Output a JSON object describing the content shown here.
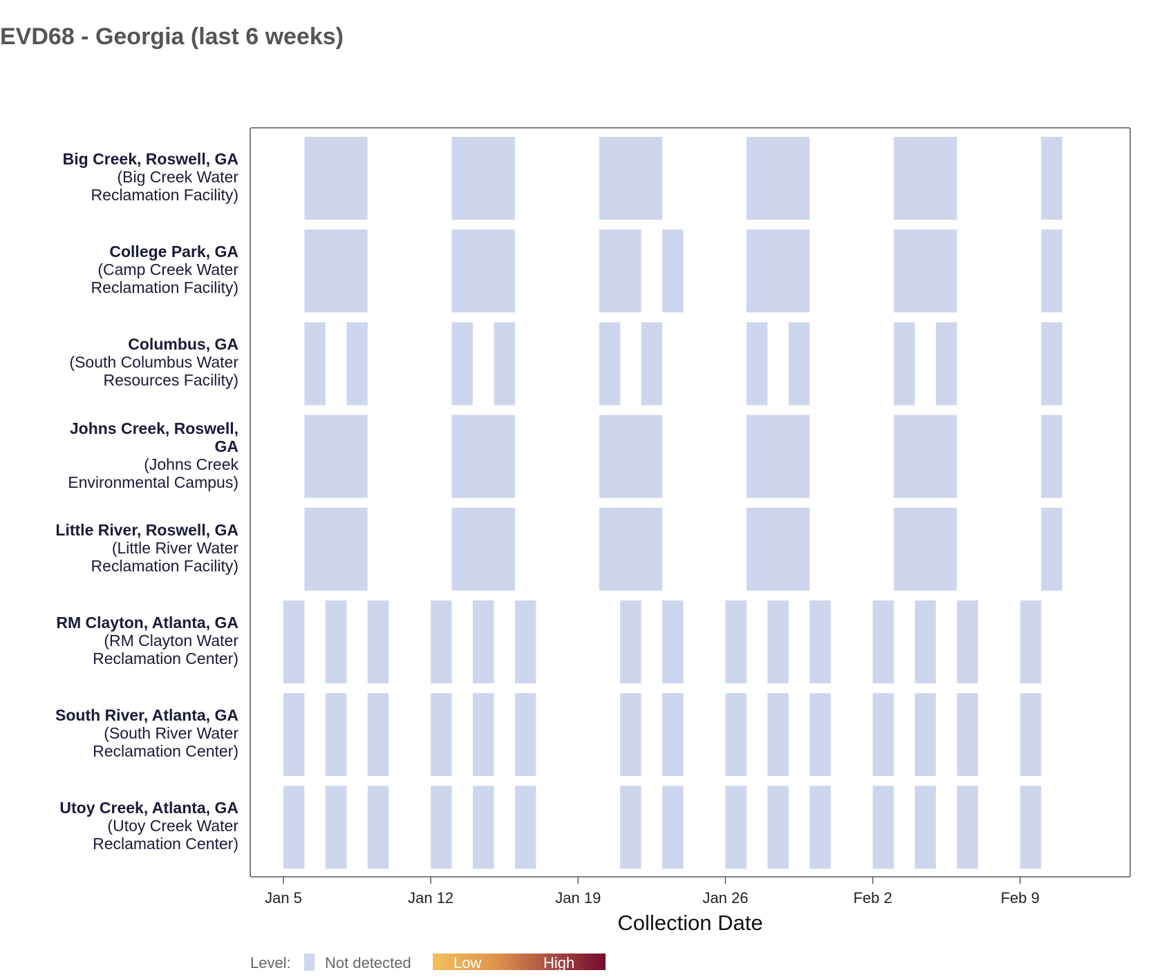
{
  "title": "EVD68 - Georgia (last 6 weeks)",
  "chart_data": {
    "type": "heatmap",
    "title": "EVD68 - Georgia (last 6 weeks)",
    "xlabel": "Collection Date",
    "ylabel": "",
    "x_ticks": [
      "Jan 5",
      "Jan 12",
      "Jan 19",
      "Jan 26",
      "Feb 2",
      "Feb 9"
    ],
    "xlim": [
      "Jan 4",
      "Feb 15"
    ],
    "grid": false,
    "legend": {
      "title": "Level:",
      "not_detected_label": "Not detected",
      "not_detected_color": "#cdd6ec",
      "gradient_low_label": "Low",
      "gradient_high_label": "High",
      "gradient_low_color": "#f2c05a",
      "gradient_high_color": "#740a2e",
      "placement": "bottom"
    },
    "sites": [
      {
        "location": "Big Creek, Roswell, GA",
        "facility": "(Big Creek Water Reclamation Facility)",
        "facility_lines": [
          "(Big Creek Water",
          "Reclamation Facility)"
        ],
        "samples": [
          {
            "start": "Jan 6",
            "end": "Jan 9"
          },
          {
            "start": "Jan 13",
            "end": "Jan 16"
          },
          {
            "start": "Jan 20",
            "end": "Jan 23"
          },
          {
            "start": "Jan 27",
            "end": "Jan 30"
          },
          {
            "start": "Feb 3",
            "end": "Feb 6"
          },
          {
            "start": "Feb 10",
            "end": "Feb 11"
          }
        ],
        "level": "Not detected"
      },
      {
        "location": "College Park, GA",
        "facility": "(Camp Creek Water Reclamation Facility)",
        "facility_lines": [
          "(Camp Creek Water",
          "Reclamation Facility)"
        ],
        "samples": [
          {
            "start": "Jan 6",
            "end": "Jan 9"
          },
          {
            "start": "Jan 13",
            "end": "Jan 16"
          },
          {
            "start": "Jan 20",
            "end": "Jan 22"
          },
          {
            "start": "Jan 23",
            "end": "Jan 24"
          },
          {
            "start": "Jan 27",
            "end": "Jan 30"
          },
          {
            "start": "Feb 3",
            "end": "Feb 6"
          },
          {
            "start": "Feb 10",
            "end": "Feb 11"
          }
        ],
        "level": "Not detected"
      },
      {
        "location": "Columbus, GA",
        "facility": "(South Columbus Water Resources Facility)",
        "facility_lines": [
          "(South Columbus Water",
          "Resources Facility)"
        ],
        "samples": [
          {
            "start": "Jan 6",
            "end": "Jan 7"
          },
          {
            "start": "Jan 8",
            "end": "Jan 9"
          },
          {
            "start": "Jan 13",
            "end": "Jan 14"
          },
          {
            "start": "Jan 15",
            "end": "Jan 16"
          },
          {
            "start": "Jan 20",
            "end": "Jan 21"
          },
          {
            "start": "Jan 22",
            "end": "Jan 23"
          },
          {
            "start": "Jan 27",
            "end": "Jan 28"
          },
          {
            "start": "Jan 29",
            "end": "Jan 30"
          },
          {
            "start": "Feb 3",
            "end": "Feb 4"
          },
          {
            "start": "Feb 5",
            "end": "Feb 6"
          },
          {
            "start": "Feb 10",
            "end": "Feb 11"
          }
        ],
        "level": "Not detected"
      },
      {
        "location": "Johns Creek, Roswell, GA",
        "location_lines": [
          "Johns Creek, Roswell,",
          "GA"
        ],
        "facility": "(Johns Creek Environmental Campus)",
        "facility_lines": [
          "(Johns Creek",
          "Environmental Campus)"
        ],
        "samples": [
          {
            "start": "Jan 6",
            "end": "Jan 9"
          },
          {
            "start": "Jan 13",
            "end": "Jan 16"
          },
          {
            "start": "Jan 20",
            "end": "Jan 23"
          },
          {
            "start": "Jan 27",
            "end": "Jan 30"
          },
          {
            "start": "Feb 3",
            "end": "Feb 6"
          },
          {
            "start": "Feb 10",
            "end": "Feb 11"
          }
        ],
        "level": "Not detected"
      },
      {
        "location": "Little River, Roswell, GA",
        "facility": "(Little River Water Reclamation Facility)",
        "facility_lines": [
          "(Little River Water",
          "Reclamation Facility)"
        ],
        "samples": [
          {
            "start": "Jan 6",
            "end": "Jan 9"
          },
          {
            "start": "Jan 13",
            "end": "Jan 16"
          },
          {
            "start": "Jan 20",
            "end": "Jan 23"
          },
          {
            "start": "Jan 27",
            "end": "Jan 30"
          },
          {
            "start": "Feb 3",
            "end": "Feb 6"
          },
          {
            "start": "Feb 10",
            "end": "Feb 11"
          }
        ],
        "level": "Not detected"
      },
      {
        "location": "RM Clayton, Atlanta, GA",
        "facility": "(RM Clayton Water Reclamation Center)",
        "facility_lines": [
          "(RM Clayton Water",
          "Reclamation Center)"
        ],
        "samples": [
          {
            "start": "Jan 5",
            "end": "Jan 6"
          },
          {
            "start": "Jan 7",
            "end": "Jan 8"
          },
          {
            "start": "Jan 9",
            "end": "Jan 10"
          },
          {
            "start": "Jan 12",
            "end": "Jan 13"
          },
          {
            "start": "Jan 14",
            "end": "Jan 15"
          },
          {
            "start": "Jan 16",
            "end": "Jan 17"
          },
          {
            "start": "Jan 21",
            "end": "Jan 22"
          },
          {
            "start": "Jan 23",
            "end": "Jan 24"
          },
          {
            "start": "Jan 26",
            "end": "Jan 27"
          },
          {
            "start": "Jan 28",
            "end": "Jan 29"
          },
          {
            "start": "Jan 30",
            "end": "Jan 31"
          },
          {
            "start": "Feb 2",
            "end": "Feb 3"
          },
          {
            "start": "Feb 4",
            "end": "Feb 5"
          },
          {
            "start": "Feb 6",
            "end": "Feb 7"
          },
          {
            "start": "Feb 9",
            "end": "Feb 10"
          }
        ],
        "level": "Not detected"
      },
      {
        "location": "South River, Atlanta, GA",
        "facility": "(South River Water Reclamation Center)",
        "facility_lines": [
          "(South River Water",
          "Reclamation Center)"
        ],
        "samples": [
          {
            "start": "Jan 5",
            "end": "Jan 6"
          },
          {
            "start": "Jan 7",
            "end": "Jan 8"
          },
          {
            "start": "Jan 9",
            "end": "Jan 10"
          },
          {
            "start": "Jan 12",
            "end": "Jan 13"
          },
          {
            "start": "Jan 14",
            "end": "Jan 15"
          },
          {
            "start": "Jan 16",
            "end": "Jan 17"
          },
          {
            "start": "Jan 21",
            "end": "Jan 22"
          },
          {
            "start": "Jan 23",
            "end": "Jan 24"
          },
          {
            "start": "Jan 26",
            "end": "Jan 27"
          },
          {
            "start": "Jan 28",
            "end": "Jan 29"
          },
          {
            "start": "Jan 30",
            "end": "Jan 31"
          },
          {
            "start": "Feb 2",
            "end": "Feb 3"
          },
          {
            "start": "Feb 4",
            "end": "Feb 5"
          },
          {
            "start": "Feb 6",
            "end": "Feb 7"
          },
          {
            "start": "Feb 9",
            "end": "Feb 10"
          }
        ],
        "level": "Not detected"
      },
      {
        "location": "Utoy Creek, Atlanta, GA",
        "facility": "(Utoy Creek Water Reclamation Center)",
        "facility_lines": [
          "(Utoy Creek Water",
          "Reclamation Center)"
        ],
        "samples": [
          {
            "start": "Jan 5",
            "end": "Jan 6"
          },
          {
            "start": "Jan 7",
            "end": "Jan 8"
          },
          {
            "start": "Jan 9",
            "end": "Jan 10"
          },
          {
            "start": "Jan 12",
            "end": "Jan 13"
          },
          {
            "start": "Jan 14",
            "end": "Jan 15"
          },
          {
            "start": "Jan 16",
            "end": "Jan 17"
          },
          {
            "start": "Jan 21",
            "end": "Jan 22"
          },
          {
            "start": "Jan 23",
            "end": "Jan 24"
          },
          {
            "start": "Jan 26",
            "end": "Jan 27"
          },
          {
            "start": "Jan 28",
            "end": "Jan 29"
          },
          {
            "start": "Jan 30",
            "end": "Jan 31"
          },
          {
            "start": "Feb 2",
            "end": "Feb 3"
          },
          {
            "start": "Feb 4",
            "end": "Feb 5"
          },
          {
            "start": "Feb 6",
            "end": "Feb 7"
          },
          {
            "start": "Feb 9",
            "end": "Feb 10"
          }
        ],
        "level": "Not detected"
      }
    ]
  }
}
